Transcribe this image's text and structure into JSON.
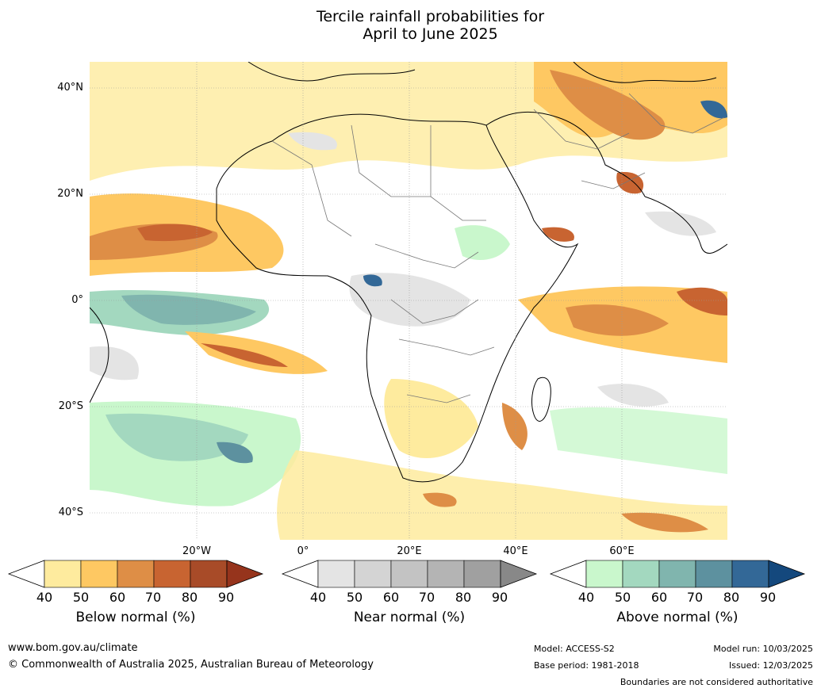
{
  "title_line1": "Tercile rainfall probabilities for",
  "title_line2": "April to June 2025",
  "map": {
    "lat_labels": [
      "40°N",
      "20°N",
      "0°",
      "20°S",
      "40°S"
    ],
    "lon_labels": [
      "20°W",
      "0°",
      "20°E",
      "40°E",
      "60°E"
    ]
  },
  "colorbars": [
    {
      "label": "Below normal (%)",
      "ticks": [
        "40",
        "50",
        "60",
        "70",
        "80",
        "90"
      ],
      "colors": [
        "#ffffff",
        "#feeb9e",
        "#fec862",
        "#de8e46",
        "#c86431",
        "#a84b28",
        "#96341c"
      ]
    },
    {
      "label": "Near normal (%)",
      "ticks": [
        "40",
        "50",
        "60",
        "70",
        "80",
        "90"
      ],
      "colors": [
        "#ffffff",
        "#e4e4e4",
        "#d4d4d4",
        "#c3c3c3",
        "#b4b4b4",
        "#a0a0a0",
        "#888888"
      ]
    },
    {
      "label": "Above normal (%)",
      "ticks": [
        "40",
        "50",
        "60",
        "70",
        "80",
        "90"
      ],
      "colors": [
        "#ffffff",
        "#c9f7cc",
        "#a3d8bf",
        "#80b5ae",
        "#5d919f",
        "#336897",
        "#14487d"
      ]
    }
  ],
  "footer": {
    "website": "www.bom.gov.au/climate",
    "copyright": "© Commonwealth of Australia 2025, Australian Bureau of Meteorology",
    "model": "Model: ACCESS-S2",
    "base_period": "Base period: 1981-2018",
    "model_run": "Model run: 10/03/2025",
    "issued": "Issued: 12/03/2025",
    "disclaimer": "Boundaries are not considered authoritative"
  }
}
